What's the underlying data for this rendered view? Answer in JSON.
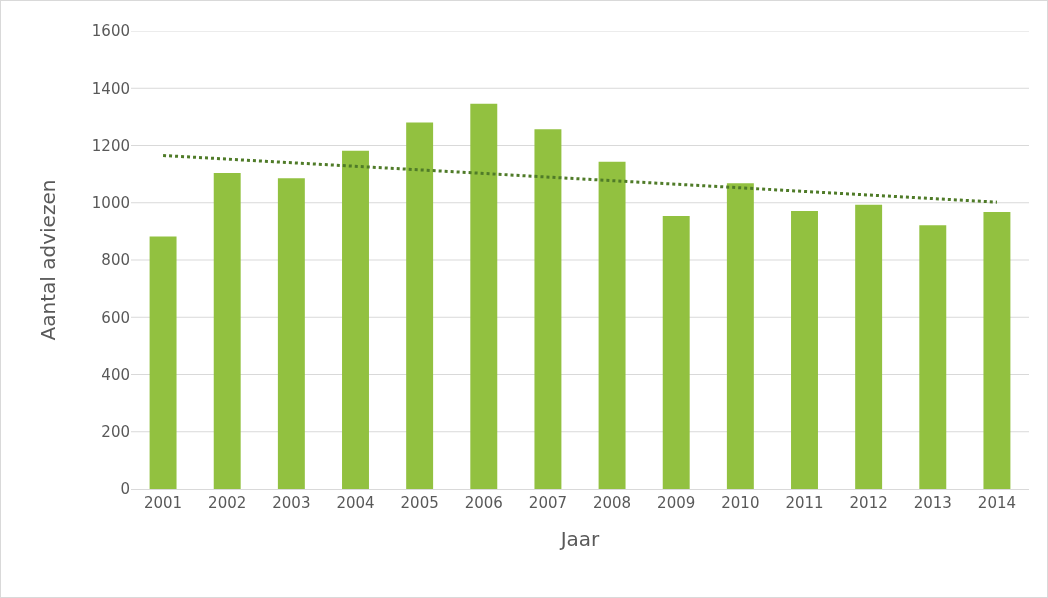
{
  "chart_data": {
    "type": "bar",
    "xlabel": "Jaar",
    "ylabel": "Aantal adviezen",
    "categories": [
      "2001",
      "2002",
      "2003",
      "2004",
      "2005",
      "2006",
      "2007",
      "2008",
      "2009",
      "2010",
      "2011",
      "2012",
      "2013",
      "2014"
    ],
    "series": [
      {
        "color": "#92c140",
        "values": [
          882,
          1104,
          1086,
          1182,
          1280,
          1346,
          1257,
          1143,
          954,
          1068,
          971,
          993,
          921,
          968
        ]
      },
      {
        "type": "line",
        "color": "#4f7b28",
        "line_style": "dotted",
        "values": [
          1165,
          null,
          null,
          null,
          null,
          null,
          null,
          null,
          null,
          null,
          null,
          null,
          null,
          1002
        ]
      }
    ],
    "ylim": [
      0,
      1600
    ],
    "yticks": [
      0,
      200,
      400,
      600,
      800,
      1000,
      1200,
      1400,
      1600
    ],
    "grid": "y"
  }
}
